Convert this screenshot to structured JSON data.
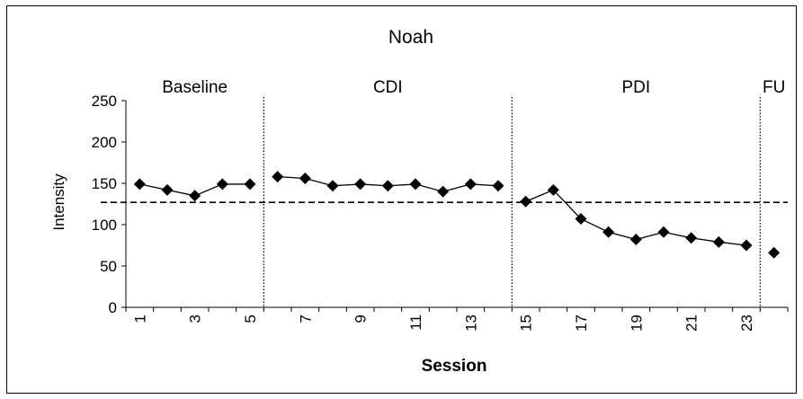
{
  "chart_data": {
    "type": "line",
    "title": "Noah",
    "xlabel": "Session",
    "ylabel": "Intensity",
    "ylim": [
      0,
      250
    ],
    "yticks": [
      0,
      50,
      100,
      150,
      200,
      250
    ],
    "xlim": [
      0.5,
      24.5
    ],
    "xtick_labels": [
      "1",
      "3",
      "5",
      "7",
      "9",
      "11",
      "13",
      "15",
      "17",
      "19",
      "21",
      "23"
    ],
    "xtick_values": [
      1,
      3,
      5,
      7,
      9,
      11,
      13,
      15,
      17,
      19,
      21,
      23
    ],
    "grid": false,
    "reference_line": {
      "y": 127,
      "style": "dashed"
    },
    "phases": [
      {
        "label": "Baseline",
        "start": 0.5,
        "end": 5.5
      },
      {
        "label": "CDI",
        "start": 5.5,
        "end": 14.5
      },
      {
        "label": "PDI",
        "start": 14.5,
        "end": 23.5
      },
      {
        "label": "FU",
        "start": 23.5,
        "end": 24.5
      }
    ],
    "phase_boundaries": [
      5.5,
      14.5,
      23.5
    ],
    "series": [
      {
        "segments": [
          {
            "x": [
              1,
              2,
              3,
              4,
              5
            ],
            "y": [
              149,
              142,
              135,
              149,
              149
            ]
          },
          {
            "x": [
              6,
              7,
              8,
              9,
              10,
              11,
              12,
              13,
              14
            ],
            "y": [
              158,
              156,
              147,
              149,
              147,
              149,
              140,
              149,
              147
            ]
          },
          {
            "x": [
              15,
              16,
              17,
              18,
              19,
              20,
              21,
              22,
              23
            ],
            "y": [
              128,
              142,
              107,
              91,
              82,
              91,
              84,
              79,
              75
            ]
          },
          {
            "x": [
              24
            ],
            "y": [
              66
            ]
          }
        ],
        "marker": "diamond",
        "color": "#000000"
      }
    ]
  }
}
